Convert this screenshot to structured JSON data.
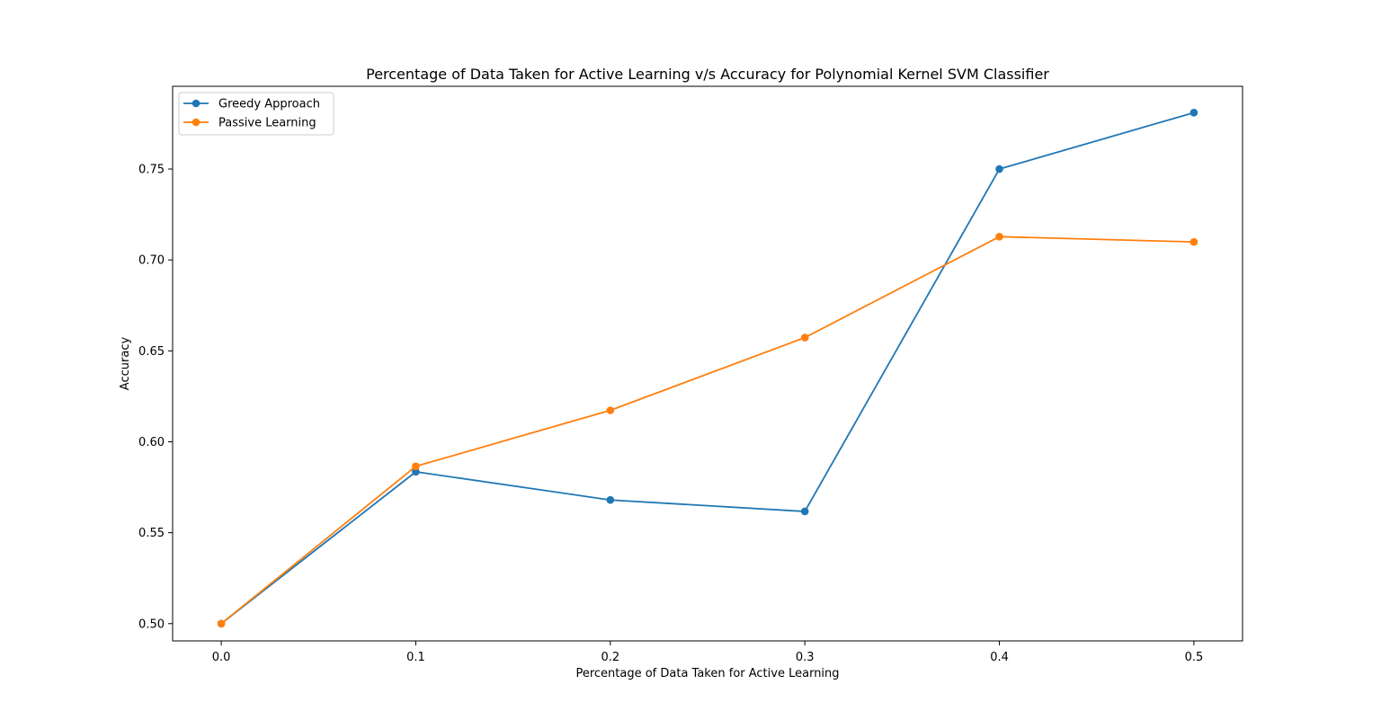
{
  "chart_data": {
    "type": "line",
    "title": "Percentage of Data Taken for Active Learning v/s Accuracy for Polynomial Kernel SVM Classifier",
    "xlabel": "Percentage of Data Taken for Active Learning",
    "ylabel": "Accuracy",
    "x": [
      0.0,
      0.1,
      0.2,
      0.3,
      0.4,
      0.5
    ],
    "xlim": [
      -0.025,
      0.525
    ],
    "ylim": [
      0.4905,
      0.7955
    ],
    "xticks": [
      "0.0",
      "0.1",
      "0.2",
      "0.3",
      "0.4",
      "0.5"
    ],
    "yticks": [
      "0.50",
      "0.55",
      "0.60",
      "0.65",
      "0.70",
      "0.75"
    ],
    "grid": false,
    "legend_position": "top-left",
    "series": [
      {
        "name": "Greedy Approach",
        "color": "#1f77b4",
        "values": [
          0.5,
          0.5835,
          0.568,
          0.5617,
          0.75,
          0.781
        ]
      },
      {
        "name": "Passive Learning",
        "color": "#ff7f0e",
        "values": [
          0.5,
          0.5865,
          0.6173,
          0.6573,
          0.7128,
          0.7099
        ]
      }
    ]
  }
}
